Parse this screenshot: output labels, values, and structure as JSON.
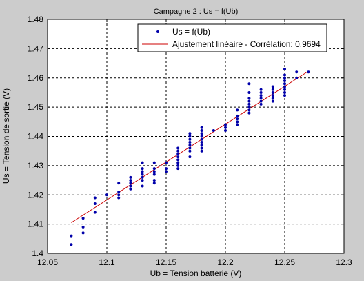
{
  "chart_data": {
    "type": "scatter",
    "title": "Campagne 2 : Us = f(Ub)",
    "xlabel": "Ub = Tension batterie (V)",
    "ylabel": "Us = Tension de sortie (V)",
    "xlim": [
      12.05,
      12.3
    ],
    "ylim": [
      1.4,
      1.48
    ],
    "xticks": [
      "12.05",
      "12.1",
      "12.15",
      "12.2",
      "12.25",
      "12.3"
    ],
    "yticks": [
      "1.4",
      "1.41",
      "1.42",
      "1.43",
      "1.44",
      "1.45",
      "1.46",
      "1.47",
      "1.48"
    ],
    "grid": true,
    "legend_position": "top-right",
    "series": [
      {
        "name": "Us = f(Ub)",
        "kind": "markers",
        "color": "#0000aa",
        "points": [
          [
            12.07,
            1.403
          ],
          [
            12.07,
            1.406
          ],
          [
            12.08,
            1.407
          ],
          [
            12.08,
            1.409
          ],
          [
            12.08,
            1.412
          ],
          [
            12.09,
            1.414
          ],
          [
            12.09,
            1.417
          ],
          [
            12.09,
            1.419
          ],
          [
            12.1,
            1.42
          ],
          [
            12.11,
            1.419
          ],
          [
            12.11,
            1.42
          ],
          [
            12.11,
            1.421
          ],
          [
            12.11,
            1.424
          ],
          [
            12.12,
            1.422
          ],
          [
            12.12,
            1.423
          ],
          [
            12.12,
            1.424
          ],
          [
            12.12,
            1.425
          ],
          [
            12.12,
            1.426
          ],
          [
            12.13,
            1.423
          ],
          [
            12.13,
            1.425
          ],
          [
            12.13,
            1.426
          ],
          [
            12.13,
            1.427
          ],
          [
            12.13,
            1.428
          ],
          [
            12.13,
            1.429
          ],
          [
            12.13,
            1.431
          ],
          [
            12.14,
            1.424
          ],
          [
            12.14,
            1.425
          ],
          [
            12.14,
            1.427
          ],
          [
            12.14,
            1.428
          ],
          [
            12.14,
            1.429
          ],
          [
            12.14,
            1.431
          ],
          [
            12.15,
            1.428
          ],
          [
            12.15,
            1.429
          ],
          [
            12.15,
            1.431
          ],
          [
            12.16,
            1.429
          ],
          [
            12.16,
            1.43
          ],
          [
            12.16,
            1.431
          ],
          [
            12.16,
            1.432
          ],
          [
            12.16,
            1.433
          ],
          [
            12.16,
            1.434
          ],
          [
            12.16,
            1.435
          ],
          [
            12.16,
            1.436
          ],
          [
            12.17,
            1.433
          ],
          [
            12.17,
            1.435
          ],
          [
            12.17,
            1.436
          ],
          [
            12.17,
            1.437
          ],
          [
            12.17,
            1.438
          ],
          [
            12.17,
            1.439
          ],
          [
            12.17,
            1.44
          ],
          [
            12.17,
            1.441
          ],
          [
            12.18,
            1.435
          ],
          [
            12.18,
            1.436
          ],
          [
            12.18,
            1.437
          ],
          [
            12.18,
            1.438
          ],
          [
            12.18,
            1.439
          ],
          [
            12.18,
            1.44
          ],
          [
            12.18,
            1.441
          ],
          [
            12.18,
            1.442
          ],
          [
            12.18,
            1.443
          ],
          [
            12.19,
            1.442
          ],
          [
            12.2,
            1.442
          ],
          [
            12.2,
            1.443
          ],
          [
            12.2,
            1.444
          ],
          [
            12.21,
            1.444
          ],
          [
            12.21,
            1.445
          ],
          [
            12.21,
            1.446
          ],
          [
            12.21,
            1.447
          ],
          [
            12.21,
            1.449
          ],
          [
            12.22,
            1.448
          ],
          [
            12.22,
            1.449
          ],
          [
            12.22,
            1.45
          ],
          [
            12.22,
            1.451
          ],
          [
            12.22,
            1.452
          ],
          [
            12.22,
            1.453
          ],
          [
            12.22,
            1.455
          ],
          [
            12.22,
            1.458
          ],
          [
            12.23,
            1.451
          ],
          [
            12.23,
            1.452
          ],
          [
            12.23,
            1.453
          ],
          [
            12.23,
            1.454
          ],
          [
            12.23,
            1.455
          ],
          [
            12.23,
            1.456
          ],
          [
            12.24,
            1.452
          ],
          [
            12.24,
            1.453
          ],
          [
            12.24,
            1.454
          ],
          [
            12.24,
            1.455
          ],
          [
            12.24,
            1.456
          ],
          [
            12.24,
            1.457
          ],
          [
            12.25,
            1.454
          ],
          [
            12.25,
            1.455
          ],
          [
            12.25,
            1.456
          ],
          [
            12.25,
            1.457
          ],
          [
            12.25,
            1.458
          ],
          [
            12.25,
            1.459
          ],
          [
            12.25,
            1.46
          ],
          [
            12.25,
            1.461
          ],
          [
            12.25,
            1.463
          ],
          [
            12.26,
            1.46
          ],
          [
            12.26,
            1.462
          ],
          [
            12.27,
            1.462
          ]
        ]
      },
      {
        "name": "Ajustement linéaire - Corrélation: 0.9694",
        "kind": "line",
        "color": "#cc0000",
        "points": [
          [
            12.07,
            1.4105
          ],
          [
            12.27,
            1.4623
          ]
        ]
      }
    ]
  }
}
